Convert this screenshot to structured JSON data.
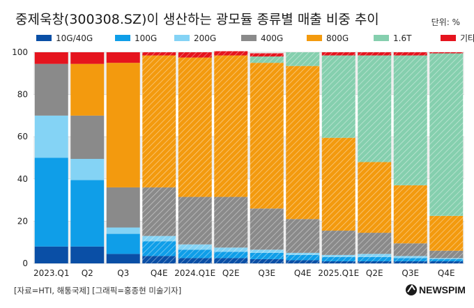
{
  "chart_data": {
    "type": "bar",
    "stacked": true,
    "title": "중제욱창(300308.SZ)이 생산하는 광모듈 종류별 매출 비중 추이",
    "unit": "단위: %",
    "xlabel": "",
    "ylabel": "",
    "ylim": [
      0,
      100
    ],
    "yticks": [
      0,
      20,
      40,
      60,
      80,
      100
    ],
    "grid": true,
    "legend_position": "top",
    "categories": [
      "2023.Q1",
      "Q2",
      "Q3",
      "Q4E",
      "2024.Q1E",
      "Q2E",
      "Q3E",
      "Q4E",
      "2025.Q1E",
      "Q2E",
      "Q3E",
      "Q4E"
    ],
    "estimated": [
      false,
      false,
      false,
      true,
      true,
      true,
      true,
      true,
      true,
      true,
      true,
      true
    ],
    "series": [
      {
        "name": "10G/40G",
        "color": "#0a4fa6",
        "values": [
          8,
          8,
          4.5,
          3.5,
          2.5,
          2.5,
          2,
          1.5,
          1,
          1,
          1,
          1
        ]
      },
      {
        "name": "100G",
        "color": "#0f9ee8",
        "values": [
          42,
          31.5,
          9.5,
          7,
          4,
          3,
          3,
          2.5,
          2,
          2,
          1.5,
          1
        ]
      },
      {
        "name": "200G",
        "color": "#84d3f5",
        "values": [
          20,
          10,
          3,
          2.5,
          2.5,
          2,
          1.5,
          1,
          1,
          1.5,
          1,
          0.5
        ]
      },
      {
        "name": "400G",
        "color": "#8a8a8a",
        "values": [
          24.5,
          20.5,
          19,
          23,
          22.5,
          24,
          19.5,
          16,
          11.5,
          10,
          6,
          3.5
        ]
      },
      {
        "name": "800G",
        "color": "#f39a0e",
        "values": [
          0,
          24.5,
          59,
          62.5,
          66,
          67,
          69,
          72.5,
          44,
          33.5,
          27.5,
          16.5
        ]
      },
      {
        "name": "1.6T",
        "color": "#85cfae",
        "values": [
          0,
          0,
          0,
          0,
          0,
          0,
          3,
          6.5,
          39,
          50.5,
          61.5,
          77
        ]
      },
      {
        "name": "기타",
        "color": "#e5141e",
        "values": [
          5.5,
          5.5,
          5,
          1.5,
          2.5,
          2,
          1.5,
          0,
          1.5,
          1.5,
          1.5,
          0.5
        ]
      }
    ]
  },
  "footer": {
    "source": "[자료=HTI, 해통국제] [그래픽=홍종현 미술기자]",
    "brand": "NEWSPIM"
  }
}
